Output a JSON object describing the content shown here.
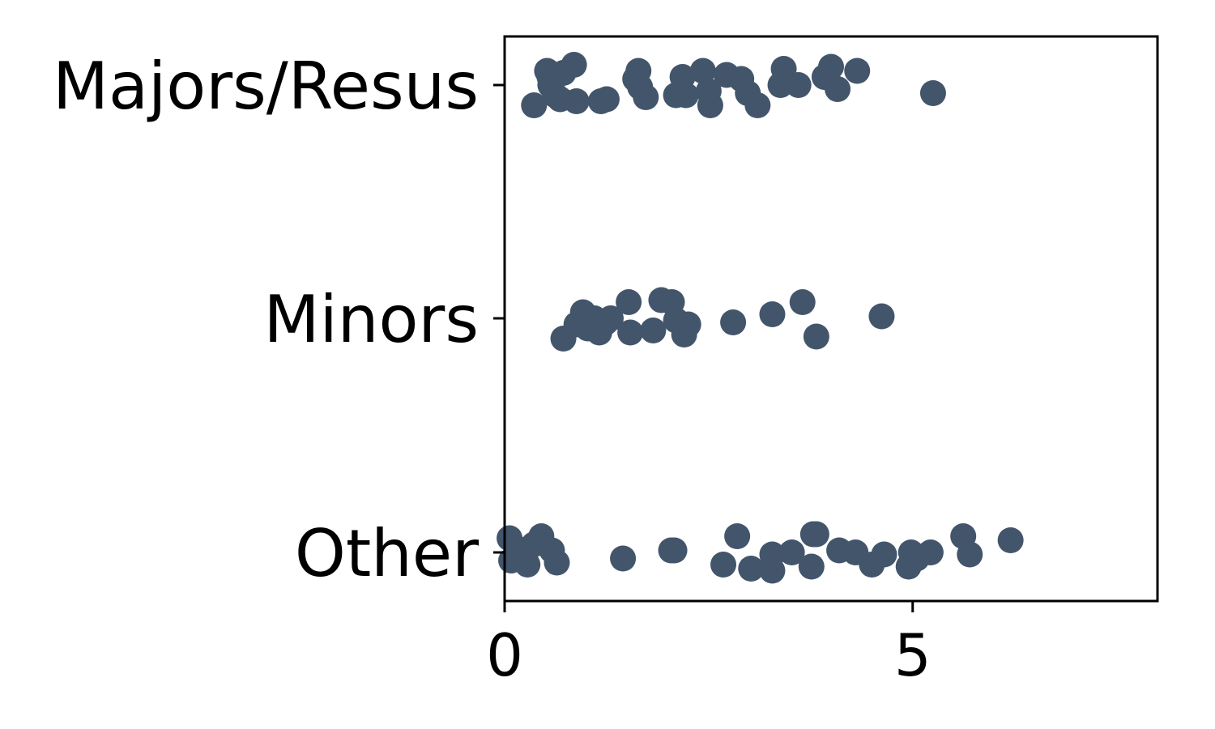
{
  "chart_data": {
    "type": "scatter",
    "title": "",
    "xlabel": "",
    "ylabel": "",
    "xlim": [
      0,
      8
    ],
    "x_ticks": [
      0,
      5
    ],
    "categories": [
      "Majors/Resus",
      "Minors",
      "Other"
    ],
    "marker_color": "#43556b",
    "grid": false,
    "series": [
      {
        "category": "Majors/Resus",
        "points": [
          {
            "x": 0.36,
            "y": -0.1
          },
          {
            "x": 0.52,
            "y": 0.07
          },
          {
            "x": 0.55,
            "y": 0.04
          },
          {
            "x": 0.56,
            "y": 0.0
          },
          {
            "x": 0.62,
            "y": -0.05
          },
          {
            "x": 0.68,
            "y": -0.07
          },
          {
            "x": 0.72,
            "y": 0.06
          },
          {
            "x": 0.85,
            "y": 0.1
          },
          {
            "x": 0.88,
            "y": -0.08
          },
          {
            "x": 1.18,
            "y": -0.08
          },
          {
            "x": 1.25,
            "y": -0.07
          },
          {
            "x": 1.6,
            "y": 0.03
          },
          {
            "x": 1.64,
            "y": 0.07
          },
          {
            "x": 1.66,
            "y": -0.01
          },
          {
            "x": 1.73,
            "y": -0.06
          },
          {
            "x": 2.1,
            "y": -0.05
          },
          {
            "x": 2.18,
            "y": 0.04
          },
          {
            "x": 2.22,
            "y": -0.05
          },
          {
            "x": 2.43,
            "y": 0.07
          },
          {
            "x": 2.5,
            "y": -0.03
          },
          {
            "x": 2.52,
            "y": -0.1
          },
          {
            "x": 2.72,
            "y": 0.05
          },
          {
            "x": 2.9,
            "y": 0.03
          },
          {
            "x": 2.98,
            "y": -0.04
          },
          {
            "x": 3.1,
            "y": -0.1
          },
          {
            "x": 3.38,
            "y": 0.0
          },
          {
            "x": 3.42,
            "y": 0.08
          },
          {
            "x": 3.6,
            "y": 0.0
          },
          {
            "x": 3.92,
            "y": 0.04
          },
          {
            "x": 4.0,
            "y": 0.09
          },
          {
            "x": 4.08,
            "y": -0.02
          },
          {
            "x": 4.32,
            "y": 0.07
          },
          {
            "x": 5.25,
            "y": -0.04
          }
        ]
      },
      {
        "category": "Minors",
        "points": [
          {
            "x": 0.72,
            "y": -0.1
          },
          {
            "x": 0.88,
            "y": -0.03
          },
          {
            "x": 0.96,
            "y": 0.03
          },
          {
            "x": 1.02,
            "y": -0.05
          },
          {
            "x": 1.1,
            "y": 0.0
          },
          {
            "x": 1.16,
            "y": -0.07
          },
          {
            "x": 1.24,
            "y": -0.02
          },
          {
            "x": 1.3,
            "y": 0.0
          },
          {
            "x": 1.52,
            "y": 0.08
          },
          {
            "x": 1.54,
            "y": -0.07
          },
          {
            "x": 1.82,
            "y": -0.06
          },
          {
            "x": 1.92,
            "y": 0.09
          },
          {
            "x": 2.05,
            "y": 0.08
          },
          {
            "x": 2.1,
            "y": -0.01
          },
          {
            "x": 2.2,
            "y": -0.08
          },
          {
            "x": 2.25,
            "y": -0.03
          },
          {
            "x": 2.8,
            "y": -0.02
          },
          {
            "x": 3.28,
            "y": 0.02
          },
          {
            "x": 3.65,
            "y": 0.08
          },
          {
            "x": 3.82,
            "y": -0.09
          },
          {
            "x": 4.62,
            "y": 0.01
          }
        ]
      },
      {
        "category": "Other",
        "points": [
          {
            "x": 0.06,
            "y": 0.07
          },
          {
            "x": 0.08,
            "y": -0.04
          },
          {
            "x": 0.15,
            "y": 0.02
          },
          {
            "x": 0.22,
            "y": -0.03
          },
          {
            "x": 0.28,
            "y": -0.06
          },
          {
            "x": 0.36,
            "y": 0.04
          },
          {
            "x": 0.45,
            "y": 0.08
          },
          {
            "x": 0.58,
            "y": 0.01
          },
          {
            "x": 0.64,
            "y": -0.05
          },
          {
            "x": 1.45,
            "y": -0.03
          },
          {
            "x": 2.04,
            "y": 0.01
          },
          {
            "x": 2.08,
            "y": 0.01
          },
          {
            "x": 2.68,
            "y": -0.06
          },
          {
            "x": 2.85,
            "y": 0.08
          },
          {
            "x": 3.02,
            "y": -0.08
          },
          {
            "x": 3.28,
            "y": -0.01
          },
          {
            "x": 3.28,
            "y": -0.09
          },
          {
            "x": 3.52,
            "y": 0.0
          },
          {
            "x": 3.76,
            "y": -0.07
          },
          {
            "x": 3.78,
            "y": 0.09
          },
          {
            "x": 3.82,
            "y": 0.09
          },
          {
            "x": 4.1,
            "y": 0.01
          },
          {
            "x": 4.3,
            "y": 0.0
          },
          {
            "x": 4.5,
            "y": -0.06
          },
          {
            "x": 4.65,
            "y": -0.01
          },
          {
            "x": 4.95,
            "y": -0.07
          },
          {
            "x": 4.98,
            "y": 0.0
          },
          {
            "x": 5.05,
            "y": -0.03
          },
          {
            "x": 5.22,
            "y": 0.0
          },
          {
            "x": 5.62,
            "y": 0.08
          },
          {
            "x": 5.7,
            "y": -0.01
          },
          {
            "x": 6.2,
            "y": 0.06
          }
        ]
      }
    ]
  }
}
